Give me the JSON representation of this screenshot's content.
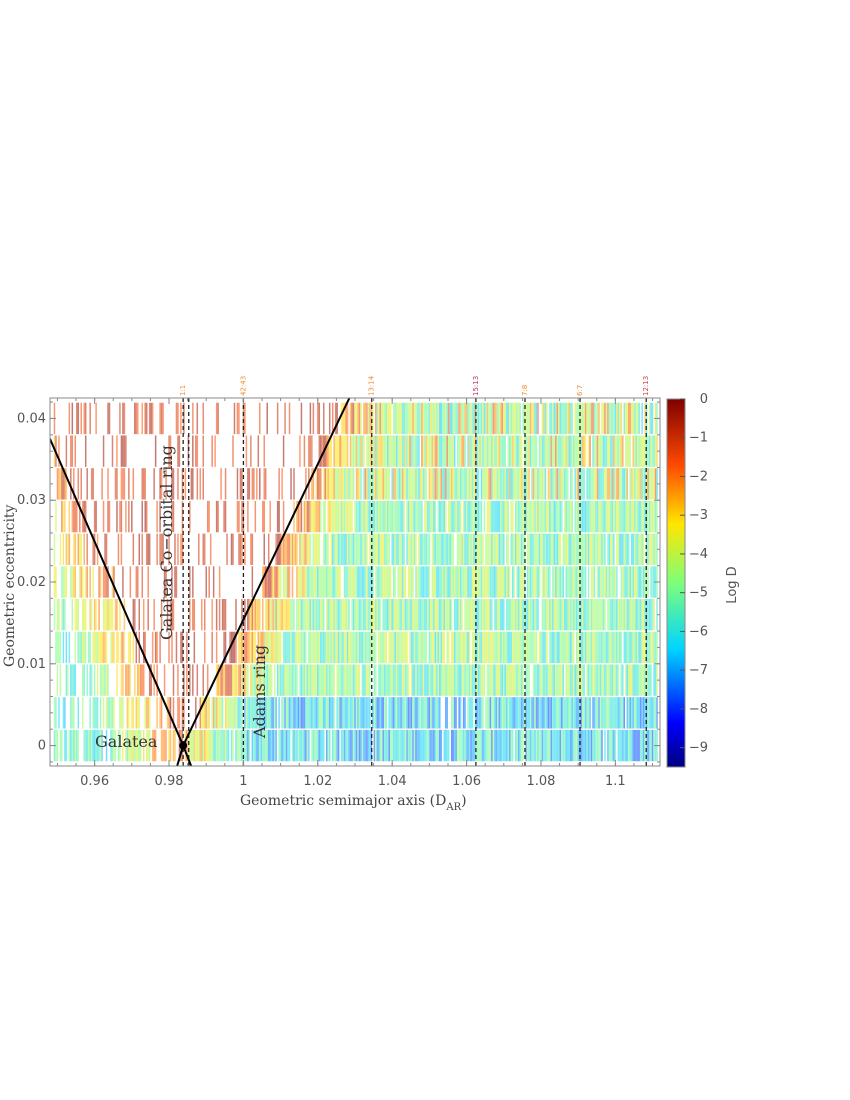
{
  "chart_data": {
    "type": "heatmap",
    "xlabel": "Geometric semimajor axis (D",
    "xlabel_sub": "AR",
    "xlabel_close": ")",
    "ylabel": "Geometric eccentricity",
    "xlim": [
      0.948,
      1.112
    ],
    "ylim": [
      -0.0025,
      0.0425
    ],
    "xticks": [
      0.96,
      0.98,
      1.0,
      1.02,
      1.04,
      1.06,
      1.08,
      1.1
    ],
    "xtick_labels": [
      "0.96",
      "0.98",
      "1",
      "1.02",
      "1.04",
      "1.06",
      "1.08",
      "1.1"
    ],
    "yticks": [
      0,
      0.01,
      0.02,
      0.03,
      0.04
    ],
    "ytick_labels": [
      "0",
      "0.01",
      "0.02",
      "0.03",
      "0.04"
    ],
    "eccentricity_rows": [
      0.0,
      0.004,
      0.008,
      0.012,
      0.016,
      0.02,
      0.024,
      0.028,
      0.032,
      0.036,
      0.04
    ],
    "colorbar": {
      "label": "Log D",
      "range": [
        -9.5,
        0
      ],
      "ticks": [
        0,
        -1,
        -2,
        -3,
        -4,
        -5,
        -6,
        -7,
        -8,
        -9
      ],
      "tick_labels": [
        "0",
        "−1",
        "−2",
        "−3",
        "−4",
        "−5",
        "−6",
        "−7",
        "−8",
        "−9"
      ]
    },
    "resonances": [
      {
        "label": "1:1",
        "a": 0.9838,
        "color": "#f08a30"
      },
      {
        "label": "42:43",
        "a": 1.0,
        "color": "#f08a30"
      },
      {
        "label": "13:14",
        "a": 1.0345,
        "color": "#f08a30"
      },
      {
        "label": "15:13",
        "a": 1.0625,
        "color": "#c0306a"
      },
      {
        "label": "7:8",
        "a": 1.0757,
        "color": "#f08a30"
      },
      {
        "label": "6:7",
        "a": 1.0905,
        "color": "#f08a30"
      },
      {
        "label": "12:13",
        "a": 1.1083,
        "color": "#d04040"
      }
    ],
    "extra_dashed_lines": [
      0.9853
    ],
    "boundary_lines": [
      {
        "from": [
          0.948,
          0.0375
        ],
        "to": [
          0.9838,
          0.0
        ]
      },
      {
        "from": [
          0.9838,
          0.0
        ],
        "to": [
          1.0285,
          0.0425
        ]
      }
    ],
    "galatea_point": {
      "a": 0.9838,
      "e": 0.0
    },
    "annotations": {
      "galatea": "Galatea",
      "coorbital": "Galatea Co−orbital ring",
      "adams": "Adams ring"
    }
  }
}
